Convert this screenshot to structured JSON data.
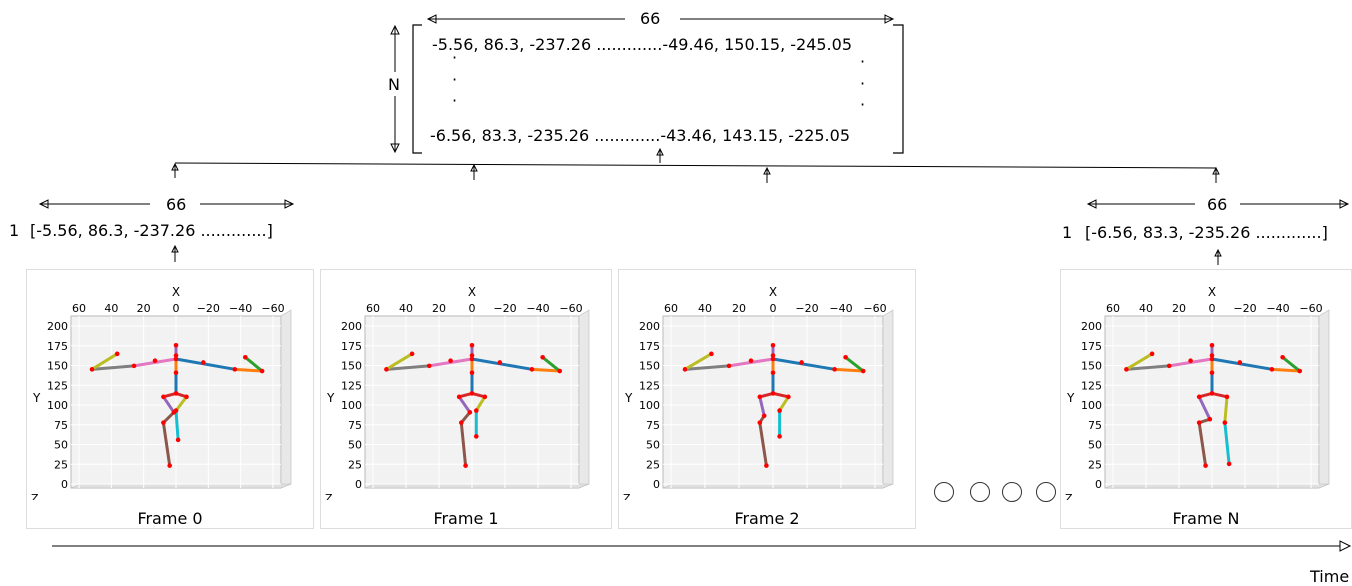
{
  "matrix": {
    "width_label": "66",
    "rows_label": "N",
    "row_first": "-5.56, 86.3, -237.26 .............-49.46, 150.15, -245.05",
    "row_last": "-6.56, 83.3, -235.26 .............-43.46, 143.15, -225.05"
  },
  "vectors": [
    {
      "width_label": "66",
      "index": "1",
      "values": "[-5.56, 86.3, -237.26 .............]"
    },
    {
      "width_label": "66",
      "index": "1",
      "values": "[-6.56, 83.3, -235.26 .............]"
    }
  ],
  "plot_labels": {
    "x_axis": "X",
    "y_axis": "Y",
    "z_axis": "Z",
    "x_ticks": [
      "60",
      "40",
      "20",
      "0",
      "−20",
      "−40",
      "−60"
    ],
    "y_ticks": [
      "0",
      "25",
      "50",
      "75",
      "100",
      "125",
      "150",
      "175",
      "200"
    ]
  },
  "frames": [
    {
      "title": "Frame 0"
    },
    {
      "title": "Frame 1"
    },
    {
      "title": "Frame 2"
    },
    {
      "title": "Frame N"
    }
  ],
  "ellipsis_count": 4,
  "time_label": "Time",
  "bone_colors": {
    "gray": "#7f7f7f",
    "pink": "#e377c2",
    "blue": "#1f77b4",
    "orange": "#ff7f0e",
    "olive": "#bcbd22",
    "green": "#2ca02c",
    "red": "#d62728",
    "purple": "#9467bd",
    "brown": "#8c564b",
    "cyan": "#17becf",
    "joint": "#ff0000"
  }
}
